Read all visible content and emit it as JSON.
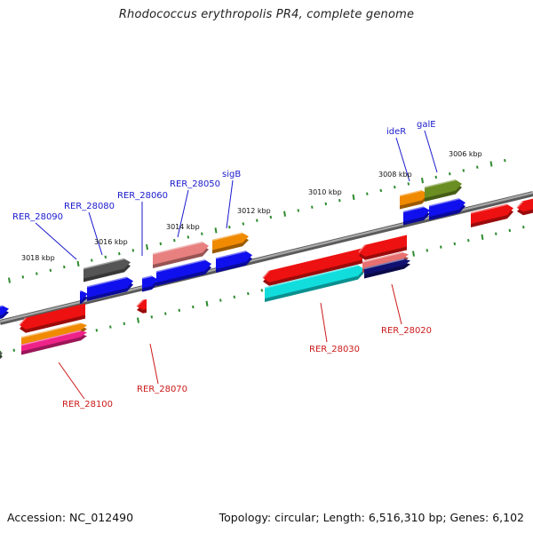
{
  "title": "Rhodococcus erythropolis PR4, complete genome",
  "footer": {
    "accession": "Accession: NC_012490",
    "summary": "Topology: circular; Length: 6,516,310 bp; Genes: 6,102"
  },
  "colors": {
    "upper_label": "#1a1acc",
    "lower_label": "#cc1a1a",
    "backbone": "#8c8c8c",
    "tick": "#2e8b2e"
  },
  "scale_labels": [
    "3018 kbp",
    "3016 kbp",
    "3014 kbp",
    "3012 kbp",
    "3010 kbp",
    "3008 kbp",
    "3006 kbp"
  ],
  "gene_labels_top": [
    "RER_28090",
    "RER_28080",
    "RER_28060",
    "RER_28050",
    "sigB",
    "ideR",
    "galE"
  ],
  "gene_labels_bottom": [
    "RER_28100",
    "RER_28070",
    "RER_28030",
    "RER_28020"
  ]
}
